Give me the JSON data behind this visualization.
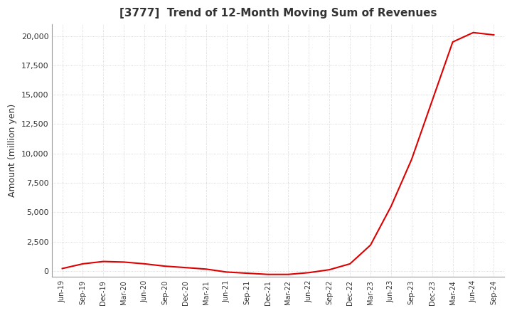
{
  "title": "[3777]  Trend of 12-Month Moving Sum of Revenues",
  "ylabel": "Amount (million yen)",
  "line_color": "#dd0000",
  "background_color": "#ffffff",
  "grid_color": "#cccccc",
  "ylim": [
    -500,
    21000
  ],
  "yticks": [
    0,
    2500,
    5000,
    7500,
    10000,
    12500,
    15000,
    17500,
    20000
  ],
  "x_labels": [
    "Jun-19",
    "Sep-19",
    "Dec-19",
    "Mar-20",
    "Jun-20",
    "Sep-20",
    "Dec-20",
    "Mar-21",
    "Jun-21",
    "Sep-21",
    "Dec-21",
    "Mar-22",
    "Jun-22",
    "Sep-22",
    "Dec-22",
    "Mar-23",
    "Jun-23",
    "Sep-23",
    "Dec-23",
    "Mar-24",
    "Jun-24",
    "Sep-24"
  ],
  "y_values": [
    200,
    600,
    800,
    750,
    600,
    400,
    280,
    150,
    -100,
    -200,
    -300,
    -300,
    -150,
    100,
    600,
    2200,
    5500,
    9500,
    14500,
    19500,
    20300,
    20100
  ]
}
